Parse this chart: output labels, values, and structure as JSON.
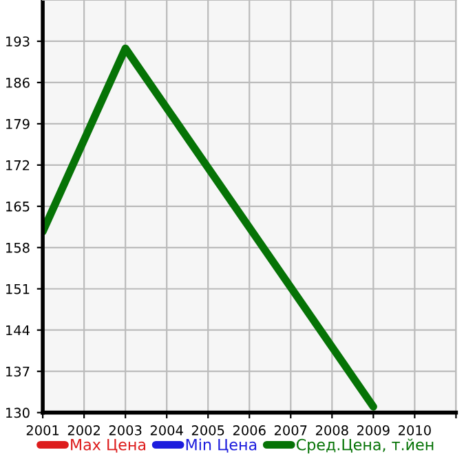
{
  "chart_data": {
    "type": "line",
    "x": [
      2001,
      2003,
      2009
    ],
    "series": [
      {
        "name": "Max Цена",
        "color": "#dd1c1c",
        "values": [
          null,
          null,
          null
        ]
      },
      {
        "name": "Min Цена",
        "color": "#1c1cdd",
        "values": [
          null,
          null,
          null
        ]
      },
      {
        "name": "Сред.Цена, т.йен",
        "color": "#067306",
        "values": [
          160.7,
          191.8,
          131
        ]
      }
    ],
    "xlim": [
      2001,
      2011
    ],
    "xticks": [
      2001,
      2002,
      2003,
      2004,
      2005,
      2006,
      2007,
      2008,
      2009,
      2010,
      {
        "value": 2011,
        "label": null
      }
    ],
    "ylim": [
      130,
      200
    ],
    "yticks": [
      130,
      137,
      144,
      151,
      158,
      165,
      172,
      179,
      186,
      193
    ],
    "grid": true,
    "legend": "bottom",
    "marker": "none",
    "line_style": "solid"
  }
}
